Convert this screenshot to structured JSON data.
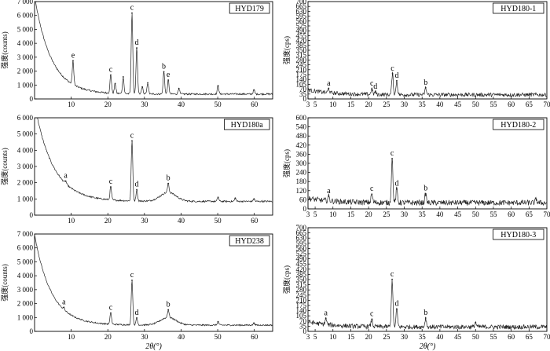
{
  "figure": {
    "background": "#ffffff",
    "axis_color": "#000000",
    "trace_color": "#222222"
  },
  "chart_data": [
    {
      "id": "p1",
      "type": "line",
      "label": "HYD179",
      "ylabel": "强度(counts)",
      "xlabel": "",
      "xlim": [
        0,
        65
      ],
      "ylim": [
        0,
        7000
      ],
      "xticks": [
        10,
        20,
        30,
        40,
        50,
        60
      ],
      "xtick_labels": [
        "10",
        "20",
        "30",
        "40",
        "50",
        "60"
      ],
      "yticks": [
        0,
        1000,
        2000,
        3000,
        4000,
        5000,
        6000,
        7000
      ],
      "ytick_labels": [
        "0",
        "1 000",
        "2 000",
        "3 000",
        "4 000",
        "5 000",
        "6 000",
        "7 000"
      ],
      "background_curve": {
        "base": 350,
        "amp": 7000,
        "decay": 0.22,
        "x0": 0,
        "noise": 60
      },
      "peaks": [
        {
          "x": 10.5,
          "y": 1700,
          "label": "e"
        },
        {
          "x": 20.8,
          "y": 1300,
          "label": "c"
        },
        {
          "x": 22.0,
          "y": 700,
          "label": ""
        },
        {
          "x": 24.2,
          "y": 1200,
          "label": ""
        },
        {
          "x": 26.6,
          "y": 5800,
          "label": "c"
        },
        {
          "x": 27.9,
          "y": 3300,
          "label": "d"
        },
        {
          "x": 29.4,
          "y": 500,
          "label": ""
        },
        {
          "x": 30.9,
          "y": 800,
          "label": ""
        },
        {
          "x": 35.3,
          "y": 1600,
          "label": "b"
        },
        {
          "x": 36.5,
          "y": 1000,
          "label": "e"
        },
        {
          "x": 39.4,
          "y": 400,
          "label": ""
        },
        {
          "x": 50.1,
          "y": 600,
          "label": ""
        },
        {
          "x": 59.9,
          "y": 300,
          "label": ""
        }
      ]
    },
    {
      "id": "p2",
      "type": "line",
      "label": "HYD180a",
      "ylabel": "强度(counts)",
      "xlabel": "",
      "xlim": [
        0,
        65
      ],
      "ylim": [
        0,
        6000
      ],
      "xticks": [
        10,
        20,
        30,
        40,
        50,
        60
      ],
      "xtick_labels": [
        "10",
        "20",
        "30",
        "40",
        "50",
        "60"
      ],
      "yticks": [
        0,
        1000,
        2000,
        3000,
        4000,
        5000,
        6000
      ],
      "ytick_labels": [
        "0",
        "1 000",
        "2 000",
        "3 000",
        "4 000",
        "5 000",
        "6 000"
      ],
      "background_curve": {
        "base": 850,
        "amp": 6000,
        "decay": 0.2,
        "x0": 0,
        "noise": 50,
        "hump_x": 36.5,
        "hump_amp": 550,
        "hump_w": 3
      },
      "peaks": [
        {
          "x": 8.5,
          "y": 150,
          "label": "a"
        },
        {
          "x": 20.8,
          "y": 800,
          "label": "c"
        },
        {
          "x": 26.6,
          "y": 3700,
          "label": "c"
        },
        {
          "x": 27.9,
          "y": 700,
          "label": "d"
        },
        {
          "x": 36.5,
          "y": 550,
          "label": "b"
        },
        {
          "x": 50.1,
          "y": 250,
          "label": ""
        },
        {
          "x": 54.8,
          "y": 200,
          "label": ""
        },
        {
          "x": 59.9,
          "y": 150,
          "label": ""
        }
      ]
    },
    {
      "id": "p3",
      "type": "line",
      "label": "HYD238",
      "ylabel": "强度(counts)",
      "xlabel": "2θ(°)",
      "xlim": [
        0,
        65
      ],
      "ylim": [
        0,
        7000
      ],
      "xticks": [
        10,
        20,
        30,
        40,
        50,
        60
      ],
      "xtick_labels": [
        "10",
        "20",
        "30",
        "40",
        "50",
        "60"
      ],
      "yticks": [
        0,
        1000,
        2000,
        3000,
        4000,
        5000,
        6000,
        7000
      ],
      "ytick_labels": [
        "0",
        "1 000",
        "2 000",
        "3 000",
        "4 000",
        "5 000",
        "6 000",
        "7 000"
      ],
      "background_curve": {
        "base": 450,
        "amp": 6500,
        "decay": 0.22,
        "x0": 0,
        "noise": 50,
        "hump_x": 36.5,
        "hump_amp": 550,
        "hump_w": 3
      },
      "peaks": [
        {
          "x": 8.0,
          "y": 150,
          "label": "a"
        },
        {
          "x": 20.8,
          "y": 800,
          "label": "c"
        },
        {
          "x": 26.6,
          "y": 3200,
          "label": "c"
        },
        {
          "x": 27.9,
          "y": 500,
          "label": "d"
        },
        {
          "x": 36.5,
          "y": 550,
          "label": "b"
        },
        {
          "x": 50.1,
          "y": 250,
          "label": ""
        },
        {
          "x": 59.9,
          "y": 150,
          "label": ""
        }
      ]
    },
    {
      "id": "p4",
      "type": "line",
      "label": "HYD180-1",
      "ylabel": "强度(cps)",
      "xlabel": "",
      "xlim": [
        3,
        70
      ],
      "ylim": [
        0,
        700
      ],
      "xticks": [
        3,
        5,
        10,
        15,
        20,
        25,
        30,
        35,
        40,
        45,
        50,
        55,
        60,
        65,
        70
      ],
      "xtick_labels": [
        "3",
        "5",
        "10",
        "15",
        "20",
        "25",
        "30",
        "35",
        "40",
        "45",
        "50",
        "55",
        "60",
        "65",
        "70"
      ],
      "yticks": [
        0,
        35,
        70,
        105,
        140,
        175,
        210,
        245,
        280,
        315,
        350,
        385,
        420,
        455,
        490,
        525,
        560,
        595,
        630,
        665,
        700
      ],
      "ytick_labels": [
        "0",
        "35",
        "70",
        "105",
        "140",
        "175",
        "210",
        "245",
        "280",
        "315",
        "350",
        "385",
        "420",
        "455",
        "490",
        "525",
        "560",
        "595",
        "630",
        "665",
        "700"
      ],
      "background_curve": {
        "base": 30,
        "amp": 35,
        "decay": 0.15,
        "x0": 3,
        "noise": 14
      },
      "peaks": [
        {
          "x": 8.8,
          "y": 30,
          "label": "a"
        },
        {
          "x": 20.9,
          "y": 40,
          "label": "c"
        },
        {
          "x": 21.9,
          "y": 20,
          "label": "d"
        },
        {
          "x": 26.7,
          "y": 150,
          "label": "c"
        },
        {
          "x": 27.9,
          "y": 100,
          "label": "d"
        },
        {
          "x": 36.0,
          "y": 50,
          "label": "b"
        }
      ]
    },
    {
      "id": "p5",
      "type": "line",
      "label": "HYD180-2",
      "ylabel": "强度(cps)",
      "xlabel": "",
      "xlim": [
        3,
        70
      ],
      "ylim": [
        0,
        600
      ],
      "xticks": [
        3,
        5,
        10,
        15,
        20,
        25,
        30,
        35,
        40,
        45,
        50,
        55,
        60,
        65,
        70
      ],
      "xtick_labels": [
        "3",
        "5",
        "10",
        "15",
        "20",
        "25",
        "30",
        "35",
        "40",
        "45",
        "50",
        "55",
        "60",
        "65",
        "70"
      ],
      "yticks": [
        0,
        60,
        120,
        180,
        240,
        300,
        360,
        420,
        480,
        540,
        600
      ],
      "ytick_labels": [
        "0",
        "60",
        "120",
        "180",
        "240",
        "300",
        "360",
        "420",
        "480",
        "540",
        "600"
      ],
      "background_curve": {
        "base": 40,
        "amp": 30,
        "decay": 0.15,
        "x0": 3,
        "noise": 18
      },
      "peaks": [
        {
          "x": 8.8,
          "y": 30,
          "label": "a"
        },
        {
          "x": 20.9,
          "y": 55,
          "label": "c"
        },
        {
          "x": 26.6,
          "y": 290,
          "label": "c"
        },
        {
          "x": 27.9,
          "y": 90,
          "label": "d"
        },
        {
          "x": 36.0,
          "y": 60,
          "label": "b"
        },
        {
          "x": 67.0,
          "y": 25,
          "label": ""
        }
      ]
    },
    {
      "id": "p6",
      "type": "line",
      "label": "HYD180-3",
      "ylabel": "强度(cps)",
      "xlabel": "2θ(°)",
      "xlim": [
        3,
        70
      ],
      "ylim": [
        0,
        700
      ],
      "xticks": [
        3,
        5,
        10,
        15,
        20,
        25,
        30,
        35,
        40,
        45,
        50,
        55,
        60,
        65,
        70
      ],
      "xtick_labels": [
        "3",
        "5",
        "10",
        "15",
        "20",
        "25",
        "30",
        "35",
        "40",
        "45",
        "50",
        "55",
        "60",
        "65",
        "70"
      ],
      "yticks": [
        0,
        35,
        70,
        105,
        140,
        175,
        210,
        245,
        280,
        315,
        350,
        385,
        420,
        455,
        490,
        525,
        560,
        595,
        630,
        665,
        700
      ],
      "ytick_labels": [
        "0",
        "35",
        "70",
        "105",
        "140",
        "175",
        "210",
        "245",
        "280",
        "315",
        "350",
        "385",
        "420",
        "455",
        "490",
        "525",
        "560",
        "595",
        "630",
        "665",
        "700"
      ],
      "background_curve": {
        "base": 30,
        "amp": 35,
        "decay": 0.15,
        "x0": 3,
        "noise": 15
      },
      "peaks": [
        {
          "x": 8.0,
          "y": 40,
          "label": "a"
        },
        {
          "x": 20.9,
          "y": 50,
          "label": "c"
        },
        {
          "x": 26.6,
          "y": 320,
          "label": "c"
        },
        {
          "x": 27.9,
          "y": 120,
          "label": "d"
        },
        {
          "x": 36.0,
          "y": 60,
          "label": "b"
        },
        {
          "x": 50.0,
          "y": 30,
          "label": ""
        }
      ]
    }
  ]
}
